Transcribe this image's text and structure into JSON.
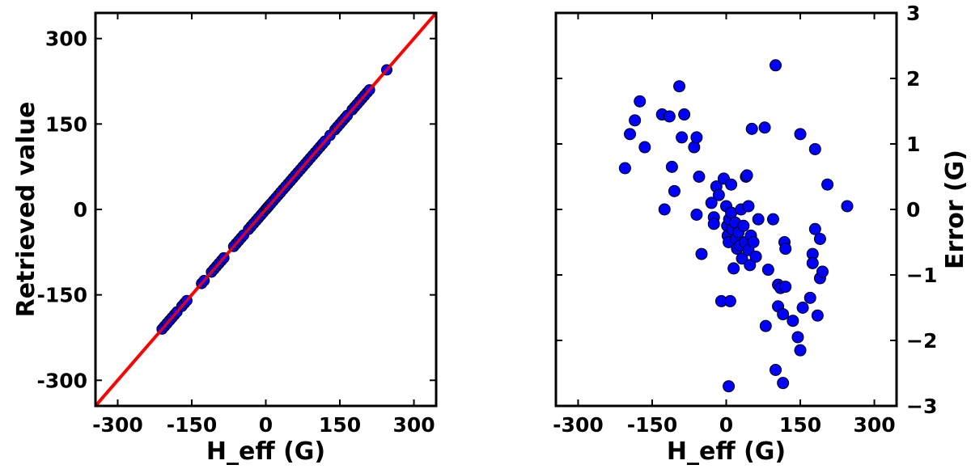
{
  "chart_data": [
    {
      "type": "scatter",
      "xlabel": "H_eff (G)",
      "ylabel": "Retrieved value",
      "xlim": [
        -345,
        345
      ],
      "ylim": [
        -345,
        345
      ],
      "x_ticks": [
        -300,
        -150,
        0,
        150,
        300
      ],
      "x_tick_labels": [
        "-300",
        "-150",
        "0",
        "150",
        "300"
      ],
      "y_ticks": [
        -300,
        -150,
        0,
        150,
        300
      ],
      "y_tick_labels": [
        "-300",
        "-150",
        "0",
        "150",
        "300"
      ],
      "grid": false,
      "marker_color": "#0000ff",
      "marker_edge": "#000000",
      "line": {
        "name": "",
        "color": "#ff0000",
        "x": [
          -345,
          345
        ],
        "y": [
          -345,
          345
        ]
      },
      "points": [
        [
          -210,
          -210
        ],
        [
          -205,
          -205
        ],
        [
          -200,
          -200
        ],
        [
          -195,
          -195
        ],
        [
          -190,
          -190
        ],
        [
          -185,
          -185
        ],
        [
          -180,
          -180
        ],
        [
          -170,
          -170
        ],
        [
          -165,
          -165
        ],
        [
          -160,
          -160
        ],
        [
          -130,
          -130
        ],
        [
          -125,
          -125
        ],
        [
          -110,
          -110
        ],
        [
          -105,
          -105
        ],
        [
          -100,
          -100
        ],
        [
          -95,
          -95
        ],
        [
          -90,
          -90
        ],
        [
          -85,
          -85
        ],
        [
          -65,
          -65
        ],
        [
          -60,
          -60
        ],
        [
          -55,
          -55
        ],
        [
          -50,
          -50
        ],
        [
          -45,
          -45
        ],
        [
          -35,
          -35
        ],
        [
          -30,
          -30
        ],
        [
          -25,
          -25
        ],
        [
          -20,
          -20
        ],
        [
          -15,
          -15
        ],
        [
          -10,
          -10
        ],
        [
          -5,
          -5
        ],
        [
          0,
          0
        ],
        [
          3,
          3
        ],
        [
          6,
          6
        ],
        [
          10,
          10
        ],
        [
          15,
          15
        ],
        [
          20,
          20
        ],
        [
          25,
          25
        ],
        [
          30,
          30
        ],
        [
          35,
          35
        ],
        [
          40,
          40
        ],
        [
          45,
          45
        ],
        [
          50,
          50
        ],
        [
          55,
          55
        ],
        [
          60,
          60
        ],
        [
          65,
          65
        ],
        [
          70,
          70
        ],
        [
          75,
          75
        ],
        [
          80,
          80
        ],
        [
          85,
          85
        ],
        [
          90,
          90
        ],
        [
          95,
          95
        ],
        [
          100,
          100
        ],
        [
          105,
          105
        ],
        [
          110,
          110
        ],
        [
          115,
          115
        ],
        [
          120,
          120
        ],
        [
          130,
          130
        ],
        [
          140,
          140
        ],
        [
          145,
          145
        ],
        [
          150,
          150
        ],
        [
          155,
          155
        ],
        [
          160,
          160
        ],
        [
          165,
          165
        ],
        [
          175,
          175
        ],
        [
          180,
          180
        ],
        [
          185,
          185
        ],
        [
          190,
          190
        ],
        [
          195,
          195
        ],
        [
          200,
          200
        ],
        [
          205,
          205
        ],
        [
          210,
          210
        ],
        [
          245,
          245
        ]
      ]
    },
    {
      "type": "scatter",
      "xlabel": "H_eff (G)",
      "ylabel": "Error (G)",
      "ylabel_side": "right",
      "xlim": [
        -345,
        345
      ],
      "ylim": [
        -3,
        3
      ],
      "x_ticks": [
        -300,
        -150,
        0,
        150,
        300
      ],
      "x_tick_labels": [
        "-300",
        "-150",
        "0",
        "150",
        "300"
      ],
      "y_ticks": [
        -3,
        -2,
        -1,
        0,
        1,
        2,
        3
      ],
      "y_tick_labels": [
        "−3",
        "−2",
        "−1",
        "0",
        "1",
        "2",
        "3"
      ],
      "grid": false,
      "marker_color": "#0000ff",
      "marker_edge": "#000000",
      "points": [
        [
          -205,
          0.63
        ],
        [
          -195,
          1.15
        ],
        [
          -185,
          1.36
        ],
        [
          -175,
          1.65
        ],
        [
          -165,
          0.95
        ],
        [
          -130,
          1.45
        ],
        [
          -125,
          0.0
        ],
        [
          -115,
          1.42
        ],
        [
          -110,
          0.65
        ],
        [
          -105,
          0.28
        ],
        [
          -95,
          1.88
        ],
        [
          -90,
          1.1
        ],
        [
          -85,
          1.45
        ],
        [
          -65,
          0.95
        ],
        [
          -60,
          1.1
        ],
        [
          -60,
          -0.08
        ],
        [
          -55,
          0.5
        ],
        [
          -50,
          -0.68
        ],
        [
          -30,
          0.1
        ],
        [
          -25,
          -0.12
        ],
        [
          -25,
          -0.22
        ],
        [
          -20,
          0.35
        ],
        [
          -15,
          0.22
        ],
        [
          -10,
          -1.4
        ],
        [
          -5,
          0.47
        ],
        [
          0,
          0.05
        ],
        [
          2,
          -0.25
        ],
        [
          3,
          -0.4
        ],
        [
          5,
          -0.5
        ],
        [
          6,
          -0.15
        ],
        [
          5,
          -2.7
        ],
        [
          8,
          -1.4
        ],
        [
          10,
          0.38
        ],
        [
          10,
          -0.05
        ],
        [
          12,
          -0.3
        ],
        [
          15,
          -0.9
        ],
        [
          18,
          -0.2
        ],
        [
          20,
          -0.45
        ],
        [
          22,
          -0.6
        ],
        [
          25,
          -0.35
        ],
        [
          28,
          -0.55
        ],
        [
          30,
          0.0
        ],
        [
          32,
          -0.75
        ],
        [
          35,
          -0.25
        ],
        [
          38,
          -0.5
        ],
        [
          40,
          0.5
        ],
        [
          42,
          0.52
        ],
        [
          45,
          0.05
        ],
        [
          45,
          -0.62
        ],
        [
          48,
          -0.85
        ],
        [
          50,
          -0.4
        ],
        [
          52,
          1.23
        ],
        [
          55,
          -0.5
        ],
        [
          60,
          -0.72
        ],
        [
          65,
          -0.15
        ],
        [
          78,
          1.25
        ],
        [
          80,
          -1.78
        ],
        [
          85,
          -0.92
        ],
        [
          95,
          -0.15
        ],
        [
          100,
          2.2
        ],
        [
          100,
          -2.45
        ],
        [
          105,
          -1.15
        ],
        [
          105,
          -1.48
        ],
        [
          110,
          -1.2
        ],
        [
          115,
          -1.6
        ],
        [
          115,
          -2.65
        ],
        [
          118,
          -0.5
        ],
        [
          120,
          -0.6
        ],
        [
          120,
          -1.18
        ],
        [
          135,
          -1.7
        ],
        [
          145,
          -1.95
        ],
        [
          150,
          1.15
        ],
        [
          150,
          -2.15
        ],
        [
          155,
          -1.5
        ],
        [
          170,
          -1.35
        ],
        [
          175,
          -0.68
        ],
        [
          175,
          -0.82
        ],
        [
          180,
          -0.3
        ],
        [
          180,
          0.92
        ],
        [
          185,
          -1.62
        ],
        [
          190,
          -1.05
        ],
        [
          190,
          -0.45
        ],
        [
          195,
          -0.95
        ],
        [
          205,
          0.38
        ],
        [
          245,
          0.05
        ]
      ]
    }
  ]
}
